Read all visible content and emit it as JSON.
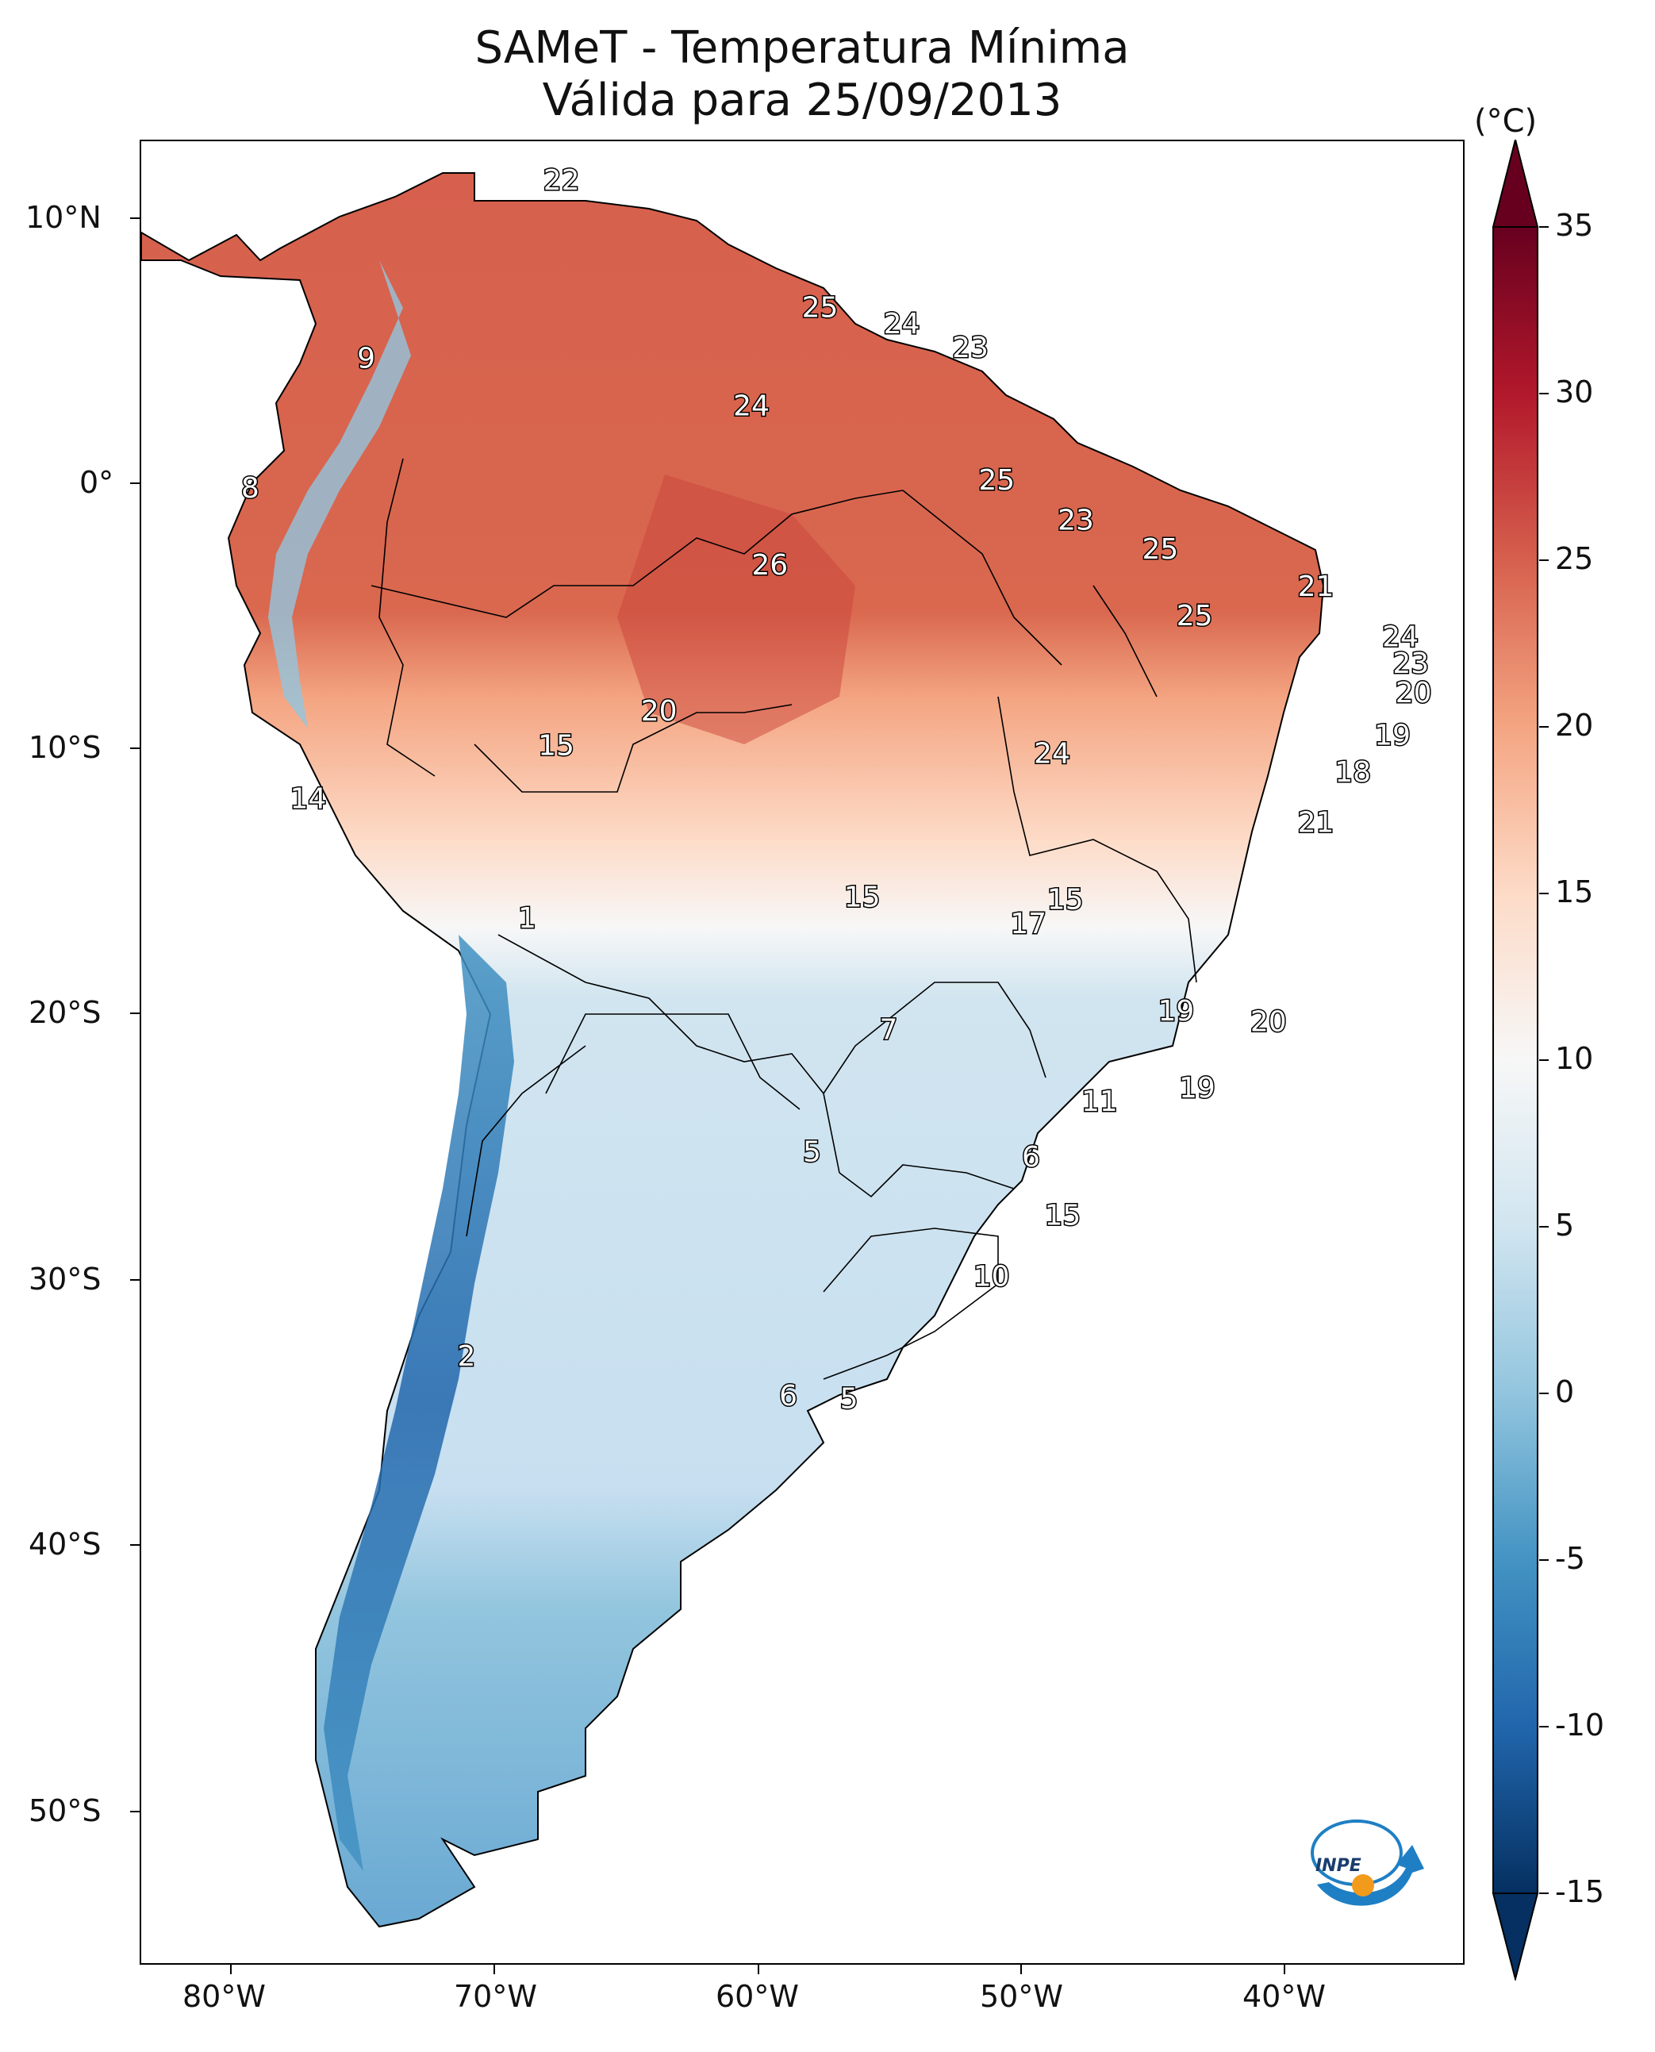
{
  "title": {
    "line1": "SAMeT - Temperatura Mínima",
    "line2": "Válida para 25/09/2013"
  },
  "axes": {
    "longitude_ticks": [
      "80°W",
      "70°W",
      "60°W",
      "50°W",
      "40°W"
    ],
    "latitude_ticks": [
      "10°N",
      "0°",
      "10°S",
      "20°S",
      "30°S",
      "40°S",
      "50°S"
    ]
  },
  "colorbar": {
    "unit": "(°C)",
    "ticks": [
      "35",
      "30",
      "25",
      "20",
      "15",
      "10",
      "5",
      "0",
      "-5",
      "-10",
      "-15"
    ],
    "range": [
      -15,
      35
    ],
    "colors": [
      "#053061",
      "#2166ac",
      "#4393c3",
      "#92c5de",
      "#d1e5f0",
      "#f7f7f7",
      "#fddbc7",
      "#f4a582",
      "#d6604d",
      "#b2182b",
      "#67001f"
    ]
  },
  "map_labels": [
    {
      "text": "22",
      "lon": -67.5,
      "lat": 11.4
    },
    {
      "text": "25",
      "lon": -57.7,
      "lat": 6.6
    },
    {
      "text": "24",
      "lon": -54.6,
      "lat": 6.0
    },
    {
      "text": "23",
      "lon": -52.0,
      "lat": 5.1
    },
    {
      "text": "9",
      "lon": -74.9,
      "lat": 4.7
    },
    {
      "text": "24",
      "lon": -60.3,
      "lat": 2.9
    },
    {
      "text": "8",
      "lon": -79.3,
      "lat": -0.2
    },
    {
      "text": "25",
      "lon": -51.0,
      "lat": 0.1
    },
    {
      "text": "23",
      "lon": -48.0,
      "lat": -1.4
    },
    {
      "text": "25",
      "lon": -44.8,
      "lat": -2.5
    },
    {
      "text": "26",
      "lon": -59.6,
      "lat": -3.1
    },
    {
      "text": "21",
      "lon": -38.9,
      "lat": -3.9
    },
    {
      "text": "25",
      "lon": -43.5,
      "lat": -5.0
    },
    {
      "text": "24",
      "lon": -35.7,
      "lat": -5.8
    },
    {
      "text": "23",
      "lon": -35.3,
      "lat": -6.8
    },
    {
      "text": "20",
      "lon": -35.2,
      "lat": -7.9
    },
    {
      "text": "20",
      "lon": -63.8,
      "lat": -8.6
    },
    {
      "text": "19",
      "lon": -36.0,
      "lat": -9.5
    },
    {
      "text": "15",
      "lon": -67.7,
      "lat": -9.9
    },
    {
      "text": "24",
      "lon": -48.9,
      "lat": -10.2
    },
    {
      "text": "18",
      "lon": -37.5,
      "lat": -10.9
    },
    {
      "text": "14",
      "lon": -77.1,
      "lat": -11.9
    },
    {
      "text": "21",
      "lon": -38.9,
      "lat": -12.8
    },
    {
      "text": "15",
      "lon": -56.1,
      "lat": -15.6
    },
    {
      "text": "15",
      "lon": -48.4,
      "lat": -15.7
    },
    {
      "text": "1",
      "lon": -68.8,
      "lat": -16.4
    },
    {
      "text": "17",
      "lon": -49.8,
      "lat": -16.6
    },
    {
      "text": "19",
      "lon": -44.2,
      "lat": -19.9
    },
    {
      "text": "7",
      "lon": -55.1,
      "lat": -20.6
    },
    {
      "text": "20",
      "lon": -40.7,
      "lat": -20.3
    },
    {
      "text": "19",
      "lon": -43.4,
      "lat": -22.8
    },
    {
      "text": "11",
      "lon": -47.1,
      "lat": -23.3
    },
    {
      "text": "5",
      "lon": -58.0,
      "lat": -25.2
    },
    {
      "text": "6",
      "lon": -49.7,
      "lat": -25.4
    },
    {
      "text": "15",
      "lon": -48.5,
      "lat": -27.6
    },
    {
      "text": "10",
      "lon": -51.2,
      "lat": -29.9
    },
    {
      "text": "2",
      "lon": -71.1,
      "lat": -32.9
    },
    {
      "text": "6",
      "lon": -58.9,
      "lat": -34.4
    },
    {
      "text": "5",
      "lon": -56.6,
      "lat": -34.5
    }
  ],
  "logo": {
    "text": "INPE"
  }
}
